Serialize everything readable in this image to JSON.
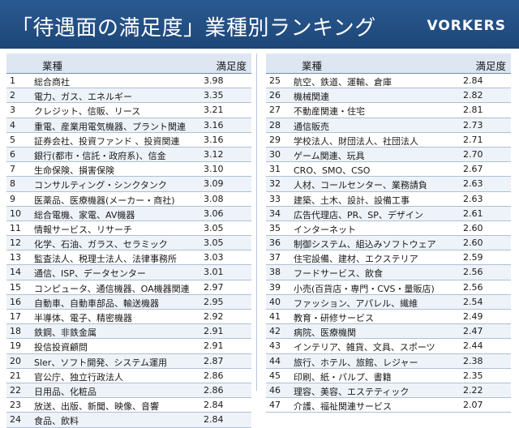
{
  "header": {
    "title": "「待遇面の満足度」業種別ランキング",
    "logo": "VORKERS"
  },
  "chart_data": {
    "type": "table",
    "title": "「待遇面の満足度」業種別ランキング",
    "columns": [
      "業種",
      "満足度"
    ],
    "rows": [
      {
        "rank": "1",
        "category": "総合商社",
        "score": "3.98"
      },
      {
        "rank": "2",
        "category": "電力、ガス、エネルギー",
        "score": "3.35"
      },
      {
        "rank": "3",
        "category": "クレジット、信販、リース",
        "score": "3.21"
      },
      {
        "rank": "4",
        "category": "重電、産業用電気機器、プラント関連",
        "score": "3.16"
      },
      {
        "rank": "5",
        "category": "証券会社、投資ファンド 、投資関連",
        "score": "3.16"
      },
      {
        "rank": "6",
        "category": "銀行(都市・信託・政府系)、信金",
        "score": "3.12"
      },
      {
        "rank": "7",
        "category": "生命保険、損害保険",
        "score": "3.10"
      },
      {
        "rank": "8",
        "category": "コンサルティング・シンクタンク",
        "score": "3.09"
      },
      {
        "rank": "9",
        "category": "医薬品、医療機器(メーカー・商社)",
        "score": "3.08"
      },
      {
        "rank": "10",
        "category": "総合電機、家電、AV機器",
        "score": "3.06"
      },
      {
        "rank": "11",
        "category": "情報サービス、リサーチ",
        "score": "3.05"
      },
      {
        "rank": "12",
        "category": "化学、石油、ガラス、セラミック",
        "score": "3.05"
      },
      {
        "rank": "13",
        "category": "監査法人、税理士法人、法律事務所",
        "score": "3.03"
      },
      {
        "rank": "14",
        "category": "通信、ISP、データセンター",
        "score": "3.01"
      },
      {
        "rank": "15",
        "category": "コンピュータ、通信機器、OA機器関連",
        "score": "2.97"
      },
      {
        "rank": "16",
        "category": "自動車、自動車部品、輸送機器",
        "score": "2.95"
      },
      {
        "rank": "17",
        "category": "半導体、電子、精密機器",
        "score": "2.92"
      },
      {
        "rank": "18",
        "category": "鉄鋼、非鉄金属",
        "score": "2.91"
      },
      {
        "rank": "19",
        "category": "投信投資顧問",
        "score": "2.91"
      },
      {
        "rank": "20",
        "category": "Sler、ソフト開発、システム運用",
        "score": "2.87"
      },
      {
        "rank": "21",
        "category": "官公庁、独立行政法人",
        "score": "2.86"
      },
      {
        "rank": "22",
        "category": "日用品、化粧品",
        "score": "2.86"
      },
      {
        "rank": "23",
        "category": "放送、出版、新聞、映像、音響",
        "score": "2.84"
      },
      {
        "rank": "24",
        "category": "食品、飲料",
        "score": "2.84"
      },
      {
        "rank": "25",
        "category": "航空、鉄道、運輸、倉庫",
        "score": "2.84"
      },
      {
        "rank": "26",
        "category": "機械関連",
        "score": "2.82"
      },
      {
        "rank": "27",
        "category": "不動産関連・住宅",
        "score": "2.81"
      },
      {
        "rank": "28",
        "category": "通信販売",
        "score": "2.73"
      },
      {
        "rank": "29",
        "category": "学校法人、財団法人、社団法人",
        "score": "2.71"
      },
      {
        "rank": "30",
        "category": "ゲーム関連、玩具",
        "score": "2.70"
      },
      {
        "rank": "31",
        "category": "CRO、SMO、CSO",
        "score": "2.67"
      },
      {
        "rank": "32",
        "category": "人材、コールセンター、業務請負",
        "score": "2.63"
      },
      {
        "rank": "33",
        "category": "建築、土木、設計、設備工事",
        "score": "2.63"
      },
      {
        "rank": "34",
        "category": "広告代理店、PR、SP、デザイン",
        "score": "2.61"
      },
      {
        "rank": "35",
        "category": "インターネット",
        "score": "2.60"
      },
      {
        "rank": "36",
        "category": "制御システム、組込みソフトウェア",
        "score": "2.60"
      },
      {
        "rank": "37",
        "category": "住宅設備、建材、エクステリア",
        "score": "2.59"
      },
      {
        "rank": "38",
        "category": "フードサービス、飲食",
        "score": "2.56"
      },
      {
        "rank": "39",
        "category": "小売(百貨店・専門・CVS・量販店)",
        "score": "2.56"
      },
      {
        "rank": "40",
        "category": "ファッション、アパレル、繊維",
        "score": "2.54"
      },
      {
        "rank": "41",
        "category": "教育・研修サービス",
        "score": "2.49"
      },
      {
        "rank": "42",
        "category": "病院、医療機関",
        "score": "2.47"
      },
      {
        "rank": "43",
        "category": "インテリア、雑貨、文具、スポーツ",
        "score": "2.44"
      },
      {
        "rank": "44",
        "category": "旅行、ホテル、旅館、レジャー",
        "score": "2.38"
      },
      {
        "rank": "45",
        "category": "印刷、紙・パルプ、書籍",
        "score": "2.35"
      },
      {
        "rank": "46",
        "category": "理容、美容、エステティック",
        "score": "2.22"
      },
      {
        "rank": "47",
        "category": "介護、福祉関連サービス",
        "score": "2.07"
      }
    ]
  }
}
